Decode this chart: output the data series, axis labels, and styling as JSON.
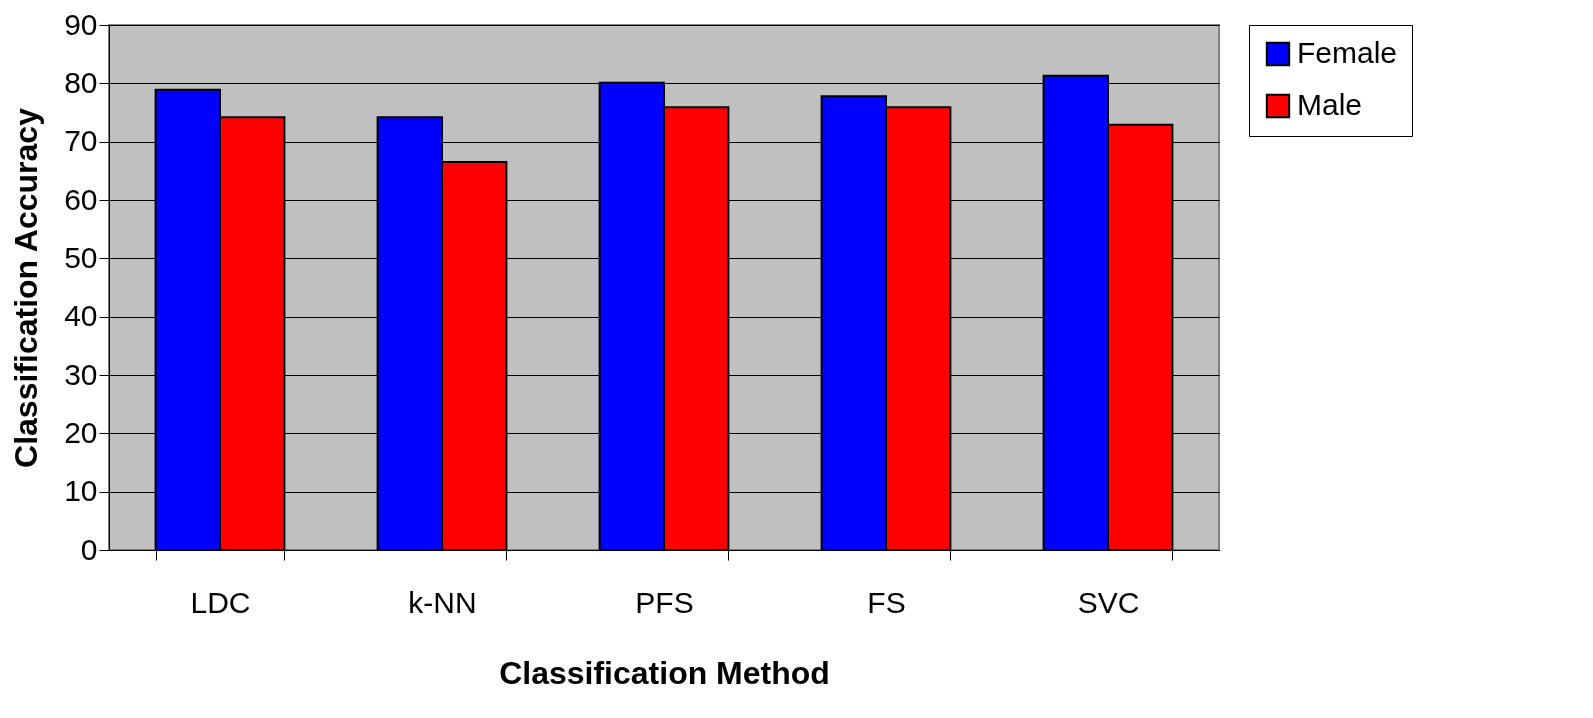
{
  "chart_data": {
    "type": "bar",
    "xlabel": "Classification Method",
    "ylabel": "Classification Accuracy",
    "categories": [
      "LDC",
      "k-NN",
      "PFS",
      "FS",
      "SVC"
    ],
    "series": [
      {
        "name": "Female",
        "color": "#0000ff",
        "values": [
          78.9,
          74.2,
          80.1,
          77.8,
          81.3
        ]
      },
      {
        "name": "Male",
        "color": "#ff0000",
        "values": [
          74.2,
          66.5,
          75.9,
          75.9,
          72.9
        ]
      }
    ],
    "ylim": [
      0,
      90
    ],
    "yticks": [
      0,
      10,
      20,
      30,
      40,
      50,
      60,
      70,
      80,
      90
    ],
    "grid": "y",
    "legend": "right"
  }
}
